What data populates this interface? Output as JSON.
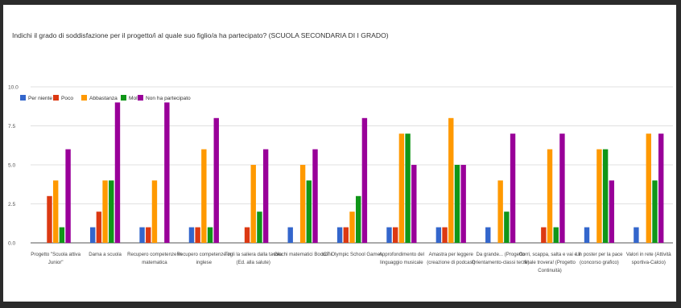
{
  "chart_data": {
    "type": "bar",
    "title": "Indichi il grado di soddisfazione per il progetto/i al quale suo figlio/a ha partecipato? (SCUOLA SECONDARIA DI I GRADO)",
    "xlabel": "",
    "ylabel": "",
    "ylim": [
      0,
      10
    ],
    "yticks": [
      "0.0",
      "2.5",
      "5.0",
      "7.5",
      "10.0"
    ],
    "grid": true,
    "legend_position": "top-left",
    "categories": [
      [
        "Progetto \"Scuola attiva",
        "Junior\""
      ],
      [
        "Dama a scuola"
      ],
      [
        "Recupero competenze in",
        "matematica"
      ],
      [
        "Recupero competenze in",
        "inglese"
      ],
      [
        "Togli la saliera dalla tavola",
        "(Ed. alla salute)"
      ],
      [
        "Giochi matematici Bocconi"
      ],
      [
        "ICT Olympic School Games"
      ],
      [
        "Approfondimento del",
        "linguaggio musicale"
      ],
      [
        "Amastra per leggere",
        "(creazione di podcast)"
      ],
      [
        "Da grande... (Progetto",
        "Orientamento-classi terze)"
      ],
      [
        "Corri, scappa, salta e vai e il",
        "finale trovera! (Progetto",
        "Continuità)"
      ],
      [
        "Un poster per la pace",
        "(concorso grafico)"
      ],
      [
        "Valori in rete (Attività",
        "sportiva-Calcio)"
      ]
    ],
    "series": [
      {
        "name": "Per niente",
        "color": "#3366cc",
        "values": [
          0,
          1,
          1,
          1,
          0,
          1,
          1,
          1,
          1,
          1,
          0,
          1,
          1
        ]
      },
      {
        "name": "Poco",
        "color": "#dc3912",
        "values": [
          3,
          2,
          1,
          1,
          1,
          0,
          1,
          1,
          1,
          0,
          1,
          0,
          0
        ]
      },
      {
        "name": "Abbastanza",
        "color": "#ff9900",
        "values": [
          4,
          4,
          4,
          6,
          5,
          5,
          2,
          7,
          8,
          4,
          6,
          6,
          7
        ]
      },
      {
        "name": "Molto",
        "color": "#109618",
        "values": [
          1,
          4,
          0,
          1,
          2,
          4,
          3,
          7,
          5,
          2,
          1,
          6,
          4
        ]
      },
      {
        "name": "Non ha partecipato",
        "color": "#990099",
        "values": [
          6,
          9,
          9,
          8,
          6,
          6,
          8,
          5,
          5,
          7,
          7,
          4,
          7
        ]
      }
    ]
  }
}
